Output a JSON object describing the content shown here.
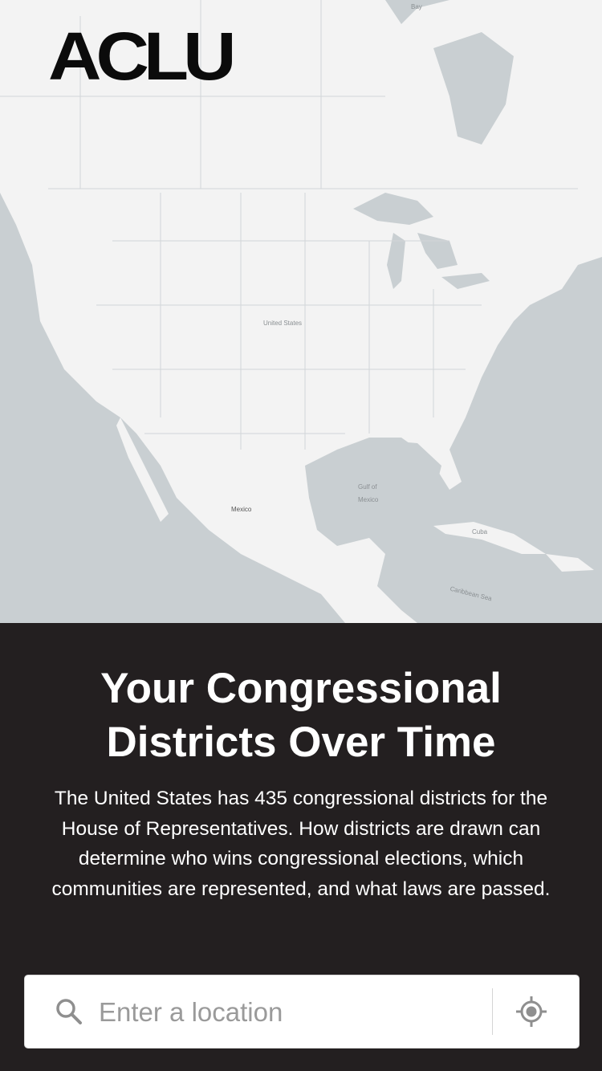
{
  "brand": {
    "logo_text": "ACLU"
  },
  "map": {
    "labels": {
      "bay": "Bay",
      "united_states": "United States",
      "gulf": "Gulf of",
      "mexico_gulf": "Mexico",
      "mexico": "Mexico",
      "caribbean": "Caribbean Sea",
      "cuba": "Cuba"
    },
    "colors": {
      "land": "#f4f4f4",
      "water": "#c9cfd2",
      "borders": "#cfd3d5"
    }
  },
  "hero": {
    "title_line1": "Your Congressional",
    "title_line2": "Districts Over Time",
    "description": "The United States has 435 congressional districts for the House of Representatives. How districts are drawn can determine who wins congressional elections, which communities are represented, and what laws are passed."
  },
  "search": {
    "placeholder": "Enter a location",
    "value": ""
  },
  "icons": {
    "search": "search-icon",
    "location": "locate-icon"
  },
  "colors": {
    "panel_bg": "#231f20",
    "text": "#ffffff",
    "icon": "#8f8f8f"
  }
}
